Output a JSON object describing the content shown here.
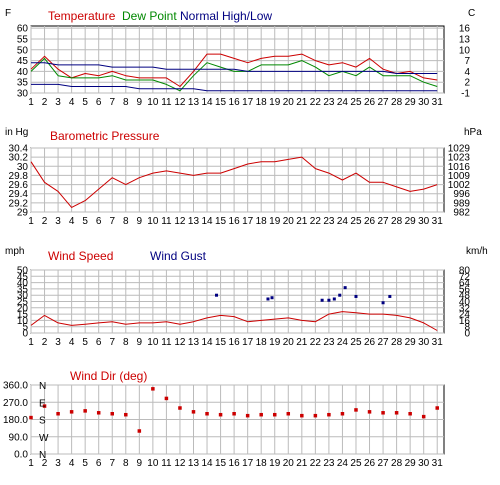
{
  "chart_data": [
    {
      "type": "line",
      "x": [
        1,
        2,
        3,
        4,
        5,
        6,
        7,
        8,
        9,
        10,
        11,
        12,
        13,
        14,
        15,
        16,
        17,
        18,
        19,
        20,
        21,
        22,
        23,
        24,
        25,
        26,
        27,
        28,
        29,
        30,
        31
      ],
      "xlim": [
        1,
        31.5
      ],
      "left_unit": "F",
      "right_unit": "C",
      "y_ticks": [
        30,
        35,
        40,
        45,
        50,
        55,
        60
      ],
      "right_ticks": [
        "-1",
        "2",
        "4",
        "7",
        "10",
        "13",
        "16"
      ],
      "ylim": [
        30,
        61
      ],
      "series": [
        {
          "name": "Temperature",
          "color": "#cc0000",
          "values": [
            41,
            47,
            41,
            37,
            39,
            38,
            40,
            38,
            37,
            37,
            37,
            33,
            40,
            48,
            48,
            46,
            44,
            46,
            47,
            47,
            48,
            45,
            43,
            44,
            42,
            46,
            41,
            39,
            40,
            37,
            36
          ]
        },
        {
          "name": "Dew Point",
          "color": "#008800",
          "values": [
            40,
            46,
            38,
            37,
            37,
            37,
            38,
            36,
            36,
            36,
            34,
            31,
            38,
            44,
            42,
            40,
            40,
            43,
            43,
            43,
            45,
            42,
            38,
            40,
            38,
            42,
            38,
            38,
            38,
            35,
            33
          ]
        },
        {
          "name": "Normal High/Low",
          "color": "#000080",
          "values": [
            44,
            44,
            43,
            43,
            43,
            43,
            42,
            42,
            42,
            42,
            41,
            41,
            41,
            41,
            41,
            41,
            40,
            40,
            40,
            40,
            40,
            40,
            40,
            40,
            40,
            40,
            40,
            39,
            39,
            39,
            39
          ]
        },
        {
          "name": "",
          "color": "#000080",
          "values": [
            34,
            34,
            34,
            33,
            33,
            33,
            33,
            33,
            32,
            32,
            32,
            32,
            32,
            31,
            31,
            31,
            31,
            31,
            31,
            31,
            31,
            31,
            31,
            31,
            31,
            31,
            31,
            31,
            31,
            31,
            31
          ]
        }
      ]
    },
    {
      "type": "line",
      "x": [
        1,
        2,
        3,
        4,
        5,
        6,
        7,
        8,
        9,
        10,
        11,
        12,
        13,
        14,
        15,
        16,
        17,
        18,
        19,
        20,
        21,
        22,
        23,
        24,
        25,
        26,
        27,
        28,
        29,
        30,
        31
      ],
      "xlim": [
        1,
        31.5
      ],
      "left_unit": "in Hg",
      "right_unit": "hPa",
      "y_ticks": [
        29.0,
        29.2,
        29.4,
        29.6,
        29.8,
        30.0,
        30.2,
        30.4
      ],
      "right_ticks": [
        "982",
        "989",
        "996",
        "1002",
        "1009",
        "1016",
        "1023",
        "1029"
      ],
      "ylim": [
        29.0,
        30.4
      ],
      "series": [
        {
          "name": "Barometric Pressure",
          "color": "#cc0000",
          "values": [
            30.1,
            29.65,
            29.45,
            29.1,
            29.25,
            29.5,
            29.75,
            29.6,
            29.75,
            29.85,
            29.9,
            29.85,
            29.8,
            29.85,
            29.85,
            29.95,
            30.05,
            30.1,
            30.1,
            30.15,
            30.2,
            29.95,
            29.85,
            29.7,
            29.85,
            29.65,
            29.65,
            29.55,
            29.45,
            29.5,
            29.6
          ]
        }
      ]
    },
    {
      "type": "line",
      "x": [
        1,
        2,
        3,
        4,
        5,
        6,
        7,
        8,
        9,
        10,
        11,
        12,
        13,
        14,
        15,
        16,
        17,
        18,
        19,
        20,
        21,
        22,
        23,
        24,
        25,
        26,
        27,
        28,
        29,
        30,
        31
      ],
      "xlim": [
        1,
        31.5
      ],
      "left_unit": "mph",
      "right_unit": "km/h",
      "y_ticks": [
        0,
        5,
        10,
        15,
        20,
        25,
        30,
        35,
        40,
        45,
        50
      ],
      "right_ticks": [
        "0",
        "8",
        "16",
        "24",
        "32",
        "40",
        "48",
        "56",
        "64",
        "72",
        "80"
      ],
      "ylim": [
        0,
        50
      ],
      "series": [
        {
          "name": "Wind Speed",
          "color": "#cc0000",
          "values": [
            6,
            14,
            8,
            6,
            7,
            8,
            9,
            7,
            8,
            8,
            9,
            7,
            9,
            12,
            14,
            13,
            9,
            10,
            11,
            12,
            10,
            9,
            15,
            17,
            16,
            15,
            15,
            14,
            12,
            8,
            2
          ]
        },
        {
          "name": "Wind Gust",
          "color": "#000080",
          "marker": "square",
          "x": [
            14.7,
            18.5,
            18.8,
            22.5,
            23.0,
            23.4,
            23.8,
            24.2,
            25.0,
            27.0,
            27.5
          ],
          "values": [
            30,
            27,
            28,
            26,
            26,
            27,
            30,
            36,
            29,
            24,
            29
          ]
        }
      ]
    },
    {
      "type": "scatter",
      "x": [
        1,
        2,
        3,
        4,
        5,
        6,
        7,
        8,
        9,
        10,
        11,
        12,
        13,
        14,
        15,
        16,
        17,
        18,
        19,
        20,
        21,
        22,
        23,
        24,
        25,
        26,
        27,
        28,
        29,
        30,
        31
      ],
      "xlim": [
        1,
        31.5
      ],
      "left_unit": "",
      "right_unit": "",
      "y_ticks": [
        0.0,
        90.0,
        180.0,
        270.0,
        360.0
      ],
      "y_tick_labels": [
        "0.0",
        "90.0",
        "180.0",
        "270.0",
        "360.0"
      ],
      "ylim": [
        0,
        360
      ],
      "compass": [
        "N",
        "W",
        "S",
        "E",
        "N"
      ],
      "series": [
        {
          "name": "Wind Dir (deg)",
          "color": "#cc0000",
          "values": [
            190,
            250,
            210,
            220,
            225,
            215,
            210,
            205,
            120,
            340,
            290,
            240,
            220,
            210,
            205,
            210,
            200,
            205,
            205,
            210,
            200,
            200,
            205,
            210,
            230,
            220,
            215,
            215,
            210,
            195,
            240
          ]
        }
      ]
    }
  ]
}
